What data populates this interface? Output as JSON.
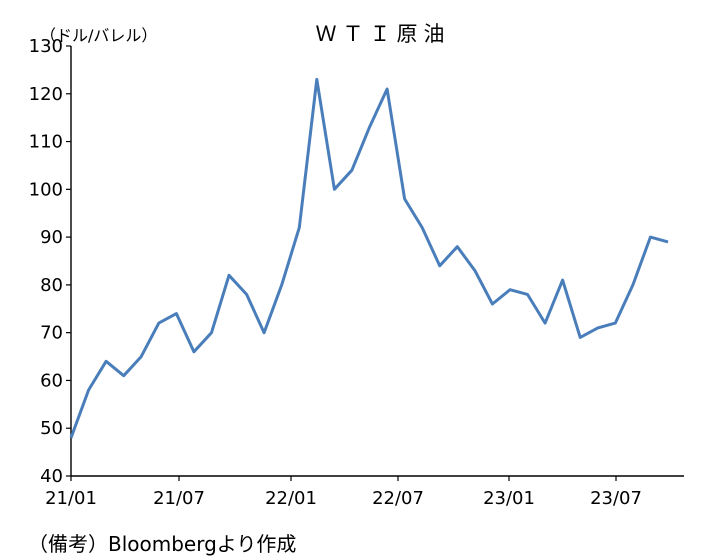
{
  "chart_data": {
    "type": "line",
    "title": "ＷＴＩ原油",
    "ylabel": "（ドル/バレル）",
    "xlabel": "",
    "ylim": [
      40,
      130
    ],
    "yticks": [
      40,
      50,
      60,
      70,
      80,
      90,
      100,
      110,
      120,
      130
    ],
    "xticks": [
      "21/01",
      "21/07",
      "22/01",
      "22/07",
      "23/01",
      "23/07"
    ],
    "grid": false,
    "legend": "none",
    "color": "#4a7ebb",
    "x": [
      "2021-01",
      "2021-02",
      "2021-03",
      "2021-04",
      "2021-05",
      "2021-06",
      "2021-07",
      "2021-08",
      "2021-09",
      "2021-10",
      "2021-11",
      "2021-12",
      "2022-01",
      "2022-02",
      "2022-03a",
      "2022-03b",
      "2022-04",
      "2022-05",
      "2022-06",
      "2022-07",
      "2022-08",
      "2022-09",
      "2022-10",
      "2022-11",
      "2022-12",
      "2023-01",
      "2023-02",
      "2023-03",
      "2023-04",
      "2023-05",
      "2023-06",
      "2023-07",
      "2023-08",
      "2023-09",
      "2023-10"
    ],
    "values": [
      48,
      58,
      64,
      61,
      65,
      72,
      74,
      66,
      70,
      82,
      78,
      70,
      80,
      92,
      123,
      100,
      104,
      113,
      121,
      98,
      92,
      84,
      88,
      83,
      76,
      79,
      78,
      72,
      81,
      69,
      71,
      72,
      80,
      90,
      89
    ],
    "series_name": "WTI"
  },
  "note": "（備考）Bloombergより作成"
}
